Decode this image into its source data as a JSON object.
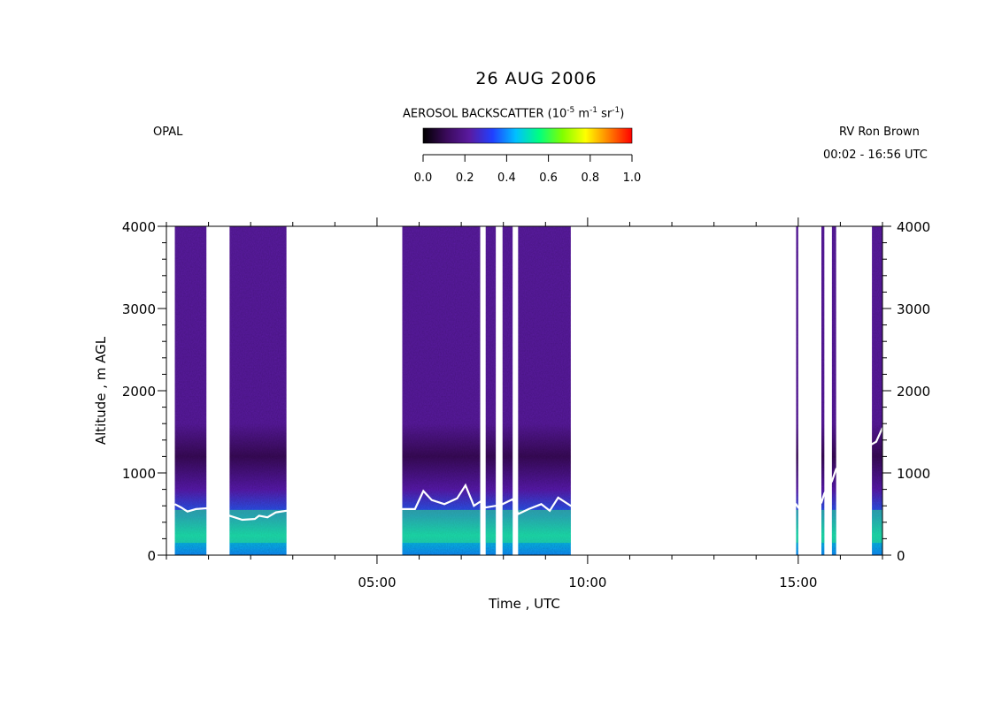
{
  "header": {
    "title": "26 AUG 2006",
    "instrument": "OPAL",
    "platform": "RV Ron Brown",
    "time_range": "00:02 - 16:56 UTC"
  },
  "colorbar": {
    "title_main": "AEROSOL BACKSCATTER (10",
    "title_exp1": "-5",
    "title_mid": " m",
    "title_exp2": "-1",
    "title_mid2": " sr",
    "title_exp3": "-1",
    "title_end": ")",
    "ticks": [
      "0.0",
      "0.2",
      "0.4",
      "0.6",
      "0.8",
      "1.0"
    ],
    "stops": [
      "#000000",
      "#3a0a5a",
      "#5a1aa0",
      "#2040ff",
      "#00c0ff",
      "#00ff80",
      "#80ff00",
      "#ffff00",
      "#ff8000",
      "#ff0000"
    ]
  },
  "chart_data": {
    "type": "heatmap",
    "title": "26 AUG 2006",
    "xlabel": "Time , UTC",
    "ylabel": "Altitude , m AGL",
    "xlim_hours": [
      0,
      17
    ],
    "ylim": [
      0,
      4000
    ],
    "x_tick_labels": [
      {
        "hour": 5,
        "label": "05:00"
      },
      {
        "hour": 10,
        "label": "10:00"
      },
      {
        "hour": 15,
        "label": "15:00"
      }
    ],
    "y_ticks": [
      0,
      1000,
      2000,
      3000,
      4000
    ],
    "y_tick_labels": [
      "0",
      "1000",
      "2000",
      "3000",
      "4000"
    ],
    "data_segments_hours": [
      [
        0.2,
        0.95
      ],
      [
        1.5,
        2.85
      ],
      [
        5.6,
        7.45
      ],
      [
        7.58,
        7.82
      ],
      [
        7.98,
        8.22
      ],
      [
        8.35,
        9.6
      ],
      [
        14.95,
        15.0
      ],
      [
        15.55,
        15.62
      ],
      [
        15.8,
        15.9
      ],
      [
        16.75,
        17.0
      ]
    ],
    "boundary_layer_height": {
      "color": "#ffffff",
      "points": [
        [
          0.2,
          620
        ],
        [
          0.35,
          580
        ],
        [
          0.5,
          530
        ],
        [
          0.7,
          560
        ],
        [
          0.95,
          570
        ],
        [
          1.5,
          480
        ],
        [
          1.8,
          430
        ],
        [
          2.1,
          440
        ],
        [
          2.2,
          480
        ],
        [
          2.4,
          460
        ],
        [
          2.6,
          520
        ],
        [
          2.85,
          540
        ],
        [
          5.6,
          560
        ],
        [
          5.9,
          560
        ],
        [
          6.1,
          780
        ],
        [
          6.3,
          670
        ],
        [
          6.6,
          620
        ],
        [
          6.9,
          690
        ],
        [
          7.1,
          850
        ],
        [
          7.3,
          600
        ],
        [
          7.45,
          650
        ],
        [
          7.58,
          580
        ],
        [
          7.82,
          600
        ],
        [
          7.98,
          620
        ],
        [
          8.22,
          680
        ],
        [
          8.35,
          500
        ],
        [
          8.6,
          560
        ],
        [
          8.9,
          620
        ],
        [
          9.1,
          540
        ],
        [
          9.3,
          700
        ],
        [
          9.6,
          600
        ],
        [
          14.95,
          620
        ],
        [
          15.0,
          580
        ],
        [
          15.55,
          640
        ],
        [
          15.62,
          750
        ],
        [
          15.8,
          900
        ],
        [
          15.9,
          1050
        ],
        [
          16.75,
          1350
        ],
        [
          16.85,
          1380
        ],
        [
          17.0,
          1550
        ]
      ]
    }
  }
}
